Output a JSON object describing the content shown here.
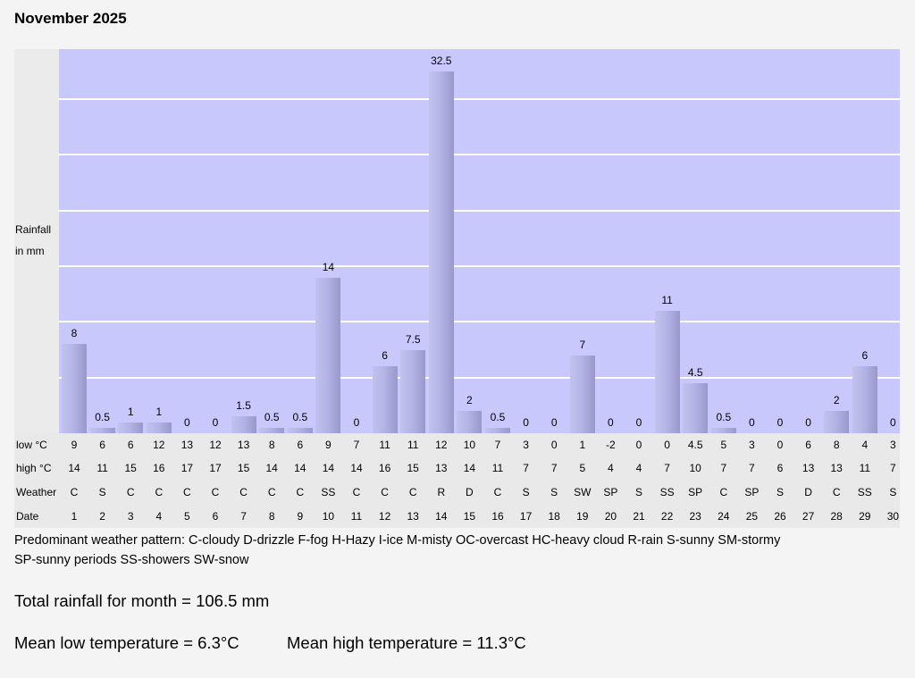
{
  "title": "November 2025",
  "chart_data": {
    "type": "bar",
    "title": "November 2025",
    "ylabel_line1": "Rainfall",
    "ylabel_line2": "in mm",
    "ylim": [
      0,
      34.5
    ],
    "grid": true,
    "categories": [
      "1",
      "2",
      "3",
      "4",
      "5",
      "6",
      "7",
      "8",
      "9",
      "10",
      "11",
      "12",
      "13",
      "14",
      "15",
      "16",
      "17",
      "18",
      "19",
      "20",
      "21",
      "22",
      "23",
      "24",
      "25",
      "26",
      "27",
      "28",
      "29",
      "30"
    ],
    "values": [
      "8",
      "0.5",
      "1",
      "1",
      "0",
      "0",
      "1.5",
      "0.5",
      "0.5",
      "14",
      "0",
      "6",
      "7.5",
      "32.5",
      "2",
      "0.5",
      "0",
      "0",
      "7",
      "0",
      "0",
      "11",
      "4.5",
      "0.5",
      "0",
      "0",
      "0",
      "2",
      "6",
      "0"
    ],
    "low": [
      "9",
      "6",
      "6",
      "12",
      "13",
      "12",
      "13",
      "8",
      "6",
      "9",
      "7",
      "11",
      "11",
      "12",
      "10",
      "7",
      "3",
      "0",
      "1",
      "-2",
      "0",
      "0",
      "4.5",
      "5",
      "3",
      "0",
      "6",
      "8",
      "4",
      "3"
    ],
    "high": [
      "14",
      "11",
      "15",
      "16",
      "17",
      "17",
      "15",
      "14",
      "14",
      "14",
      "14",
      "16",
      "15",
      "13",
      "14",
      "11",
      "7",
      "7",
      "5",
      "4",
      "4",
      "7",
      "10",
      "7",
      "7",
      "6",
      "13",
      "13",
      "11",
      "7"
    ],
    "weather": [
      "C",
      "S",
      "C",
      "C",
      "C",
      "C",
      "C",
      "C",
      "C",
      "SS",
      "C",
      "C",
      "C",
      "R",
      "D",
      "C",
      "S",
      "S",
      "SW",
      "SP",
      "S",
      "SS",
      "SP",
      "C",
      "SP",
      "S",
      "D",
      "C",
      "SS",
      "S"
    ],
    "row_labels": {
      "low": "low °C",
      "high": "high °C",
      "weather": "Weather",
      "date": "Date"
    },
    "bar_color": "#b4b4e6",
    "plot_background": "#c8c8fc"
  },
  "legend": {
    "line1": "Predominant weather pattern: C-cloudy D-drizzle F-fog H-Hazy I-ice M-misty OC-overcast HC-heavy cloud R-rain S-sunny SM-stormy",
    "line2": "SP-sunny periods SS-showers SW-snow"
  },
  "summary": {
    "total": "Total rainfall for month = 106.5 mm",
    "mean_low": "Mean low temperature = 6.3°C",
    "mean_high": "Mean high temperature = 11.3°C"
  }
}
